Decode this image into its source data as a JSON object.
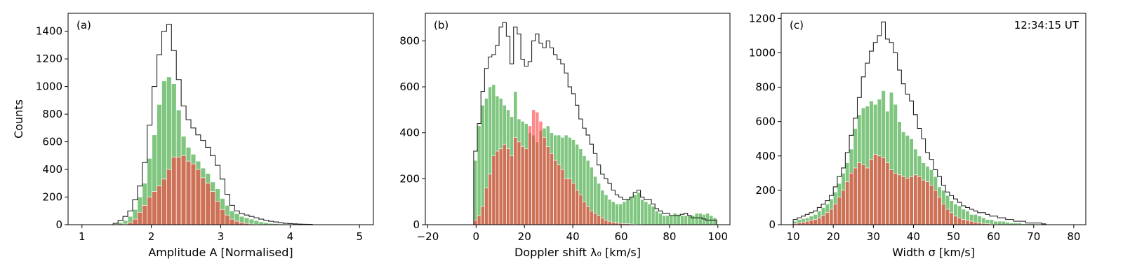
{
  "figure": {
    "time_stamp": "12:34:15 UT"
  },
  "chart_data": [
    {
      "type": "histogram",
      "panel": "(a)",
      "xlabel": "Amplitude A [Normalised]",
      "ylabel": "Counts",
      "xlim": [
        0.8,
        5.2
      ],
      "ylim": [
        0,
        1530
      ],
      "xticks": [
        1,
        2,
        3,
        4,
        5
      ],
      "yticks": [
        0,
        200,
        400,
        600,
        800,
        1000,
        1200,
        1400
      ],
      "bin_start": 1.45,
      "bin_width": 0.07,
      "series": [
        {
          "role": "total",
          "values": [
            10,
            30,
            60,
            100,
            180,
            280,
            450,
            720,
            1000,
            1230,
            1400,
            1450,
            1260,
            1050,
            860,
            760,
            700,
            650,
            610,
            560,
            500,
            430,
            330,
            220,
            140,
            100,
            80,
            70,
            60,
            50,
            40,
            32,
            25,
            20,
            15,
            10,
            8,
            6,
            4,
            3,
            2
          ]
        },
        {
          "role": "green",
          "values": [
            5,
            15,
            30,
            60,
            110,
            200,
            300,
            480,
            650,
            870,
            1040,
            1070,
            1020,
            830,
            640,
            560,
            510,
            460,
            410,
            370,
            310,
            260,
            190,
            140,
            100,
            80,
            60,
            50,
            40,
            30,
            20,
            15,
            10,
            8,
            5,
            3,
            2,
            1,
            1,
            0,
            0
          ]
        },
        {
          "role": "red",
          "values": [
            0,
            0,
            5,
            15,
            40,
            90,
            140,
            200,
            240,
            280,
            330,
            400,
            490,
            490,
            500,
            460,
            440,
            400,
            340,
            300,
            240,
            170,
            110,
            70,
            40,
            25,
            15,
            10,
            5,
            3,
            2,
            1,
            0,
            0,
            0,
            0,
            0,
            0,
            0,
            0,
            0
          ]
        }
      ]
    },
    {
      "type": "histogram",
      "panel": "(b)",
      "xlabel": "Doppler shift λ₀ [km/s]",
      "ylabel": "",
      "xlim": [
        -21,
        105
      ],
      "ylim": [
        0,
        920
      ],
      "xticks": [
        -20,
        0,
        20,
        40,
        60,
        80,
        100
      ],
      "yticks": [
        0,
        200,
        400,
        600,
        800
      ],
      "bin_start": -1,
      "bin_width": 1.5,
      "series": [
        {
          "role": "total",
          "values": [
            320,
            440,
            580,
            680,
            730,
            740,
            780,
            860,
            880,
            820,
            700,
            860,
            830,
            720,
            690,
            710,
            800,
            830,
            790,
            770,
            800,
            770,
            740,
            720,
            700,
            660,
            600,
            570,
            520,
            460,
            420,
            390,
            350,
            310,
            260,
            220,
            200,
            180,
            150,
            130,
            120,
            110,
            110,
            120,
            140,
            150,
            120,
            110,
            110,
            90,
            70,
            60,
            50,
            50,
            40,
            40,
            40,
            45,
            50,
            40,
            30,
            30,
            30,
            25,
            20,
            20,
            20
          ]
        },
        {
          "role": "green",
          "values": [
            280,
            430,
            520,
            550,
            600,
            610,
            560,
            550,
            520,
            500,
            470,
            580,
            460,
            450,
            440,
            400,
            390,
            360,
            410,
            420,
            430,
            400,
            390,
            390,
            380,
            390,
            380,
            370,
            350,
            330,
            300,
            280,
            250,
            210,
            180,
            150,
            130,
            110,
            100,
            90,
            90,
            100,
            110,
            120,
            130,
            140,
            110,
            100,
            90,
            80,
            60,
            50,
            40,
            40,
            40,
            50,
            45,
            40,
            40,
            40,
            40,
            50,
            50,
            45,
            50,
            40,
            30
          ]
        },
        {
          "role": "red",
          "values": [
            20,
            40,
            80,
            160,
            220,
            300,
            320,
            330,
            350,
            330,
            300,
            380,
            360,
            340,
            330,
            430,
            500,
            490,
            450,
            380,
            340,
            310,
            280,
            260,
            240,
            200,
            200,
            180,
            150,
            130,
            100,
            80,
            60,
            50,
            40,
            30,
            20,
            15,
            10,
            8,
            6,
            5,
            4,
            3,
            2,
            1,
            1,
            0,
            0,
            0,
            0,
            0,
            0,
            0,
            0,
            0,
            0,
            0,
            0,
            0,
            0,
            0,
            0,
            0,
            0,
            0,
            0
          ]
        }
      ]
    },
    {
      "type": "histogram",
      "panel": "(c)",
      "xlabel": "Width σ [km/s]",
      "ylabel": "",
      "xlim": [
        7,
        83
      ],
      "ylim": [
        0,
        1230
      ],
      "xticks": [
        10,
        20,
        30,
        40,
        50,
        60,
        70,
        80
      ],
      "yticks": [
        0,
        200,
        400,
        600,
        800,
        1000,
        1200
      ],
      "bin_start": 10,
      "bin_width": 1.0,
      "series": [
        {
          "role": "total",
          "values": [
            30,
            40,
            50,
            60,
            70,
            80,
            100,
            120,
            140,
            170,
            220,
            280,
            330,
            420,
            520,
            620,
            740,
            860,
            940,
            1010,
            1060,
            1100,
            1180,
            1080,
            1060,
            1000,
            900,
            820,
            760,
            720,
            640,
            560,
            500,
            420,
            380,
            320,
            280,
            230,
            190,
            170,
            150,
            130,
            110,
            100,
            90,
            80,
            70,
            70,
            60,
            50,
            50,
            40,
            40,
            30,
            30,
            20,
            20,
            20,
            10,
            10,
            10,
            10,
            5
          ]
        },
        {
          "role": "green",
          "values": [
            20,
            30,
            35,
            40,
            50,
            60,
            80,
            100,
            120,
            150,
            190,
            240,
            300,
            360,
            440,
            560,
            640,
            680,
            690,
            720,
            700,
            730,
            780,
            660,
            770,
            700,
            600,
            540,
            520,
            500,
            440,
            400,
            360,
            340,
            320,
            280,
            220,
            200,
            170,
            140,
            120,
            110,
            90,
            80,
            60,
            60,
            50,
            40,
            30,
            30,
            20,
            20,
            20,
            15,
            10,
            10,
            10,
            5,
            5,
            5,
            0,
            0,
            0
          ]
        },
        {
          "role": "red",
          "values": [
            5,
            10,
            15,
            20,
            25,
            30,
            40,
            55,
            70,
            90,
            120,
            160,
            200,
            250,
            300,
            330,
            360,
            350,
            330,
            380,
            410,
            400,
            390,
            360,
            320,
            300,
            290,
            280,
            270,
            280,
            290,
            280,
            260,
            250,
            230,
            200,
            160,
            120,
            90,
            70,
            50,
            40,
            30,
            25,
            20,
            15,
            10,
            8,
            5,
            3,
            2,
            1,
            0,
            0,
            0,
            0,
            0,
            0,
            0,
            0,
            0,
            0,
            0
          ]
        }
      ]
    }
  ]
}
